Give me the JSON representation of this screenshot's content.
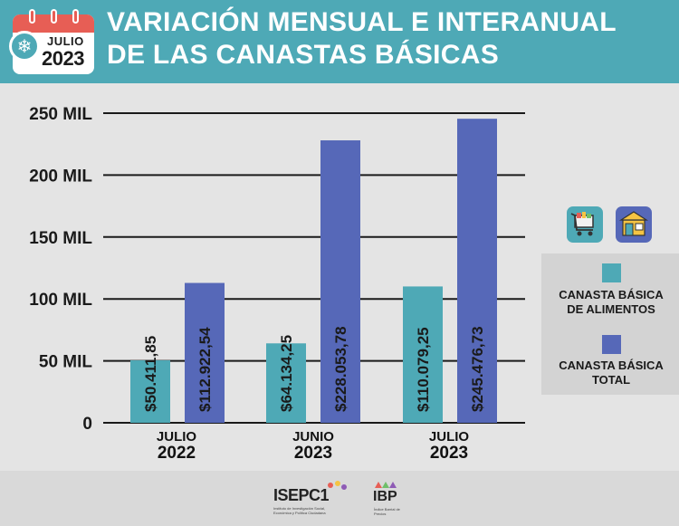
{
  "header": {
    "calendar_month": "JULIO",
    "calendar_year": "2023",
    "title_line1": "VARIACIÓN MENSUAL E INTERANUAL",
    "title_line2": "DE LAS CANASTAS BÁSICAS",
    "snowflake_icon": "❄"
  },
  "colors": {
    "header_bg": "#4ea9b6",
    "alimentos": "#4ea9b6",
    "total": "#5668b8",
    "background": "#e4e4e4"
  },
  "chart_data": {
    "type": "bar",
    "categories": [
      {
        "month": "JULIO",
        "year": "2022"
      },
      {
        "month": "JUNIO",
        "year": "2023"
      },
      {
        "month": "JULIO",
        "year": "2023"
      }
    ],
    "series": [
      {
        "name": "CANASTA BÁSICA DE ALIMENTOS",
        "values": [
          50411.85,
          64134.25,
          110079.25
        ],
        "labels": [
          "$50.411,85",
          "$64.134,25",
          "$110.079,25"
        ]
      },
      {
        "name": "CANASTA BÁSICA TOTAL",
        "values": [
          112922.54,
          228053.78,
          245476.73
        ],
        "labels": [
          "$112.922,54",
          "$228.053,78",
          "$245.476,73"
        ]
      }
    ],
    "yticks": [
      {
        "value": 0,
        "label": "0"
      },
      {
        "value": 50000,
        "label": "50 MIL"
      },
      {
        "value": 100000,
        "label": "100 MIL"
      },
      {
        "value": 150000,
        "label": "150 MIL"
      },
      {
        "value": 200000,
        "label": "200 MIL"
      },
      {
        "value": 250000,
        "label": "250 MIL"
      }
    ],
    "ylim": [
      0,
      250000
    ],
    "grid": true,
    "legend_position": "right"
  },
  "legend": {
    "item1_line1": "CANASTA BÁSICA",
    "item1_line2": "DE ALIMENTOS",
    "item2_line1": "CANASTA BÁSICA",
    "item2_line2": "TOTAL",
    "cart_icon": "shopping-cart-icon",
    "store_icon": "storefront-icon"
  },
  "footer": {
    "logo1_name": "ISEPC",
    "logo1_suffix": "1",
    "logo1_sub": "Instituto de Investigación Social, Económica y Política Ciudadana",
    "logo2_name": "IBP",
    "logo2_sub": "Índice Barrial de Precios"
  }
}
